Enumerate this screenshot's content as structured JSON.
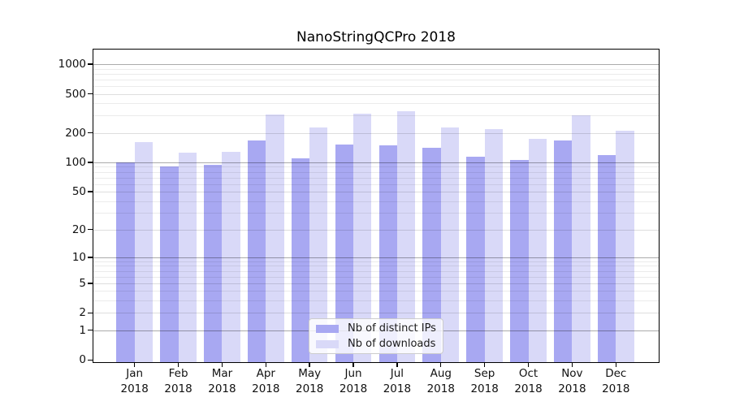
{
  "chart_data": {
    "type": "bar",
    "title": "NanoStringQCPro 2018",
    "categories": [
      "Jan 2018",
      "Feb 2018",
      "Mar 2018",
      "Apr 2018",
      "May 2018",
      "Jun 2018",
      "Jul 2018",
      "Aug 2018",
      "Sep 2018",
      "Oct 2018",
      "Nov 2018",
      "Dec 2018"
    ],
    "months": [
      "Jan",
      "Feb",
      "Mar",
      "Apr",
      "May",
      "Jun",
      "Jul",
      "Aug",
      "Sep",
      "Oct",
      "Nov",
      "Dec"
    ],
    "year_label": "2018",
    "series": [
      {
        "name": "Nb of distinct IPs",
        "color": "#a8a8f2",
        "values": [
          100,
          91,
          95,
          167,
          109,
          152,
          150,
          140,
          114,
          106,
          169,
          119
        ]
      },
      {
        "name": "Nb of downloads",
        "color": "#d9d9f8",
        "values": [
          160,
          126,
          128,
          310,
          229,
          312,
          331,
          228,
          219,
          175,
          305,
          209
        ]
      }
    ],
    "ylabel": "",
    "xlabel": "",
    "y_scale": "log10(value+1)",
    "ylim": [
      0,
      1400
    ],
    "y_ticks": [
      0,
      1,
      2,
      5,
      10,
      20,
      50,
      100,
      200,
      500,
      1000
    ],
    "y_major_gridlines": [
      1,
      10,
      100,
      1000
    ],
    "y_mid_gridlines": [
      2,
      5,
      20,
      50,
      200,
      500
    ],
    "y_minor_gridlines": [
      3,
      4,
      6,
      7,
      8,
      9,
      30,
      40,
      60,
      70,
      80,
      90,
      300,
      400,
      600,
      700,
      800,
      900
    ],
    "grid": true,
    "legend_position": "lower center",
    "background": "#ffffff"
  }
}
